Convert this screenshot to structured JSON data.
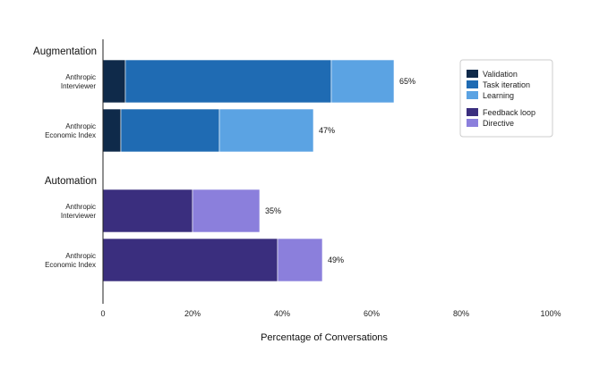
{
  "chart_data": {
    "type": "bar",
    "orientation": "horizontal",
    "stacked": true,
    "xlabel": "Percentage of Conversations",
    "xlim": [
      0,
      100
    ],
    "xticks": [
      "0",
      "20%",
      "40%",
      "60%",
      "80%",
      "100%"
    ],
    "groups": [
      {
        "name": "Augmentation",
        "rows": [
          {
            "label": [
              "Anthropic",
              "Interviewer"
            ],
            "total_label": "65%",
            "segments": [
              {
                "series": "Validation",
                "value": 5
              },
              {
                "series": "Task iteration",
                "value": 46
              },
              {
                "series": "Learning",
                "value": 14
              }
            ]
          },
          {
            "label": [
              "Anthropic",
              "Economic Index"
            ],
            "total_label": "47%",
            "segments": [
              {
                "series": "Validation",
                "value": 4
              },
              {
                "series": "Task iteration",
                "value": 22
              },
              {
                "series": "Learning",
                "value": 21
              }
            ]
          }
        ]
      },
      {
        "name": "Automation",
        "rows": [
          {
            "label": [
              "Anthropic",
              "Interviewer"
            ],
            "total_label": "35%",
            "segments": [
              {
                "series": "Feedback loop",
                "value": 20
              },
              {
                "series": "Directive",
                "value": 15
              }
            ]
          },
          {
            "label": [
              "Anthropic",
              "Economic Index"
            ],
            "total_label": "49%",
            "segments": [
              {
                "series": "Feedback loop",
                "value": 39
              },
              {
                "series": "Directive",
                "value": 10
              }
            ]
          }
        ]
      }
    ],
    "legend": {
      "placement": "top-right",
      "items": [
        {
          "name": "Validation",
          "color": "#0f2a4a"
        },
        {
          "name": "Task iteration",
          "color": "#1f6bb3"
        },
        {
          "name": "Learning",
          "color": "#5ba3e3"
        },
        {
          "name": "Feedback loop",
          "color": "#3a2e7e"
        },
        {
          "name": "Directive",
          "color": "#8b7fdc"
        }
      ]
    }
  }
}
